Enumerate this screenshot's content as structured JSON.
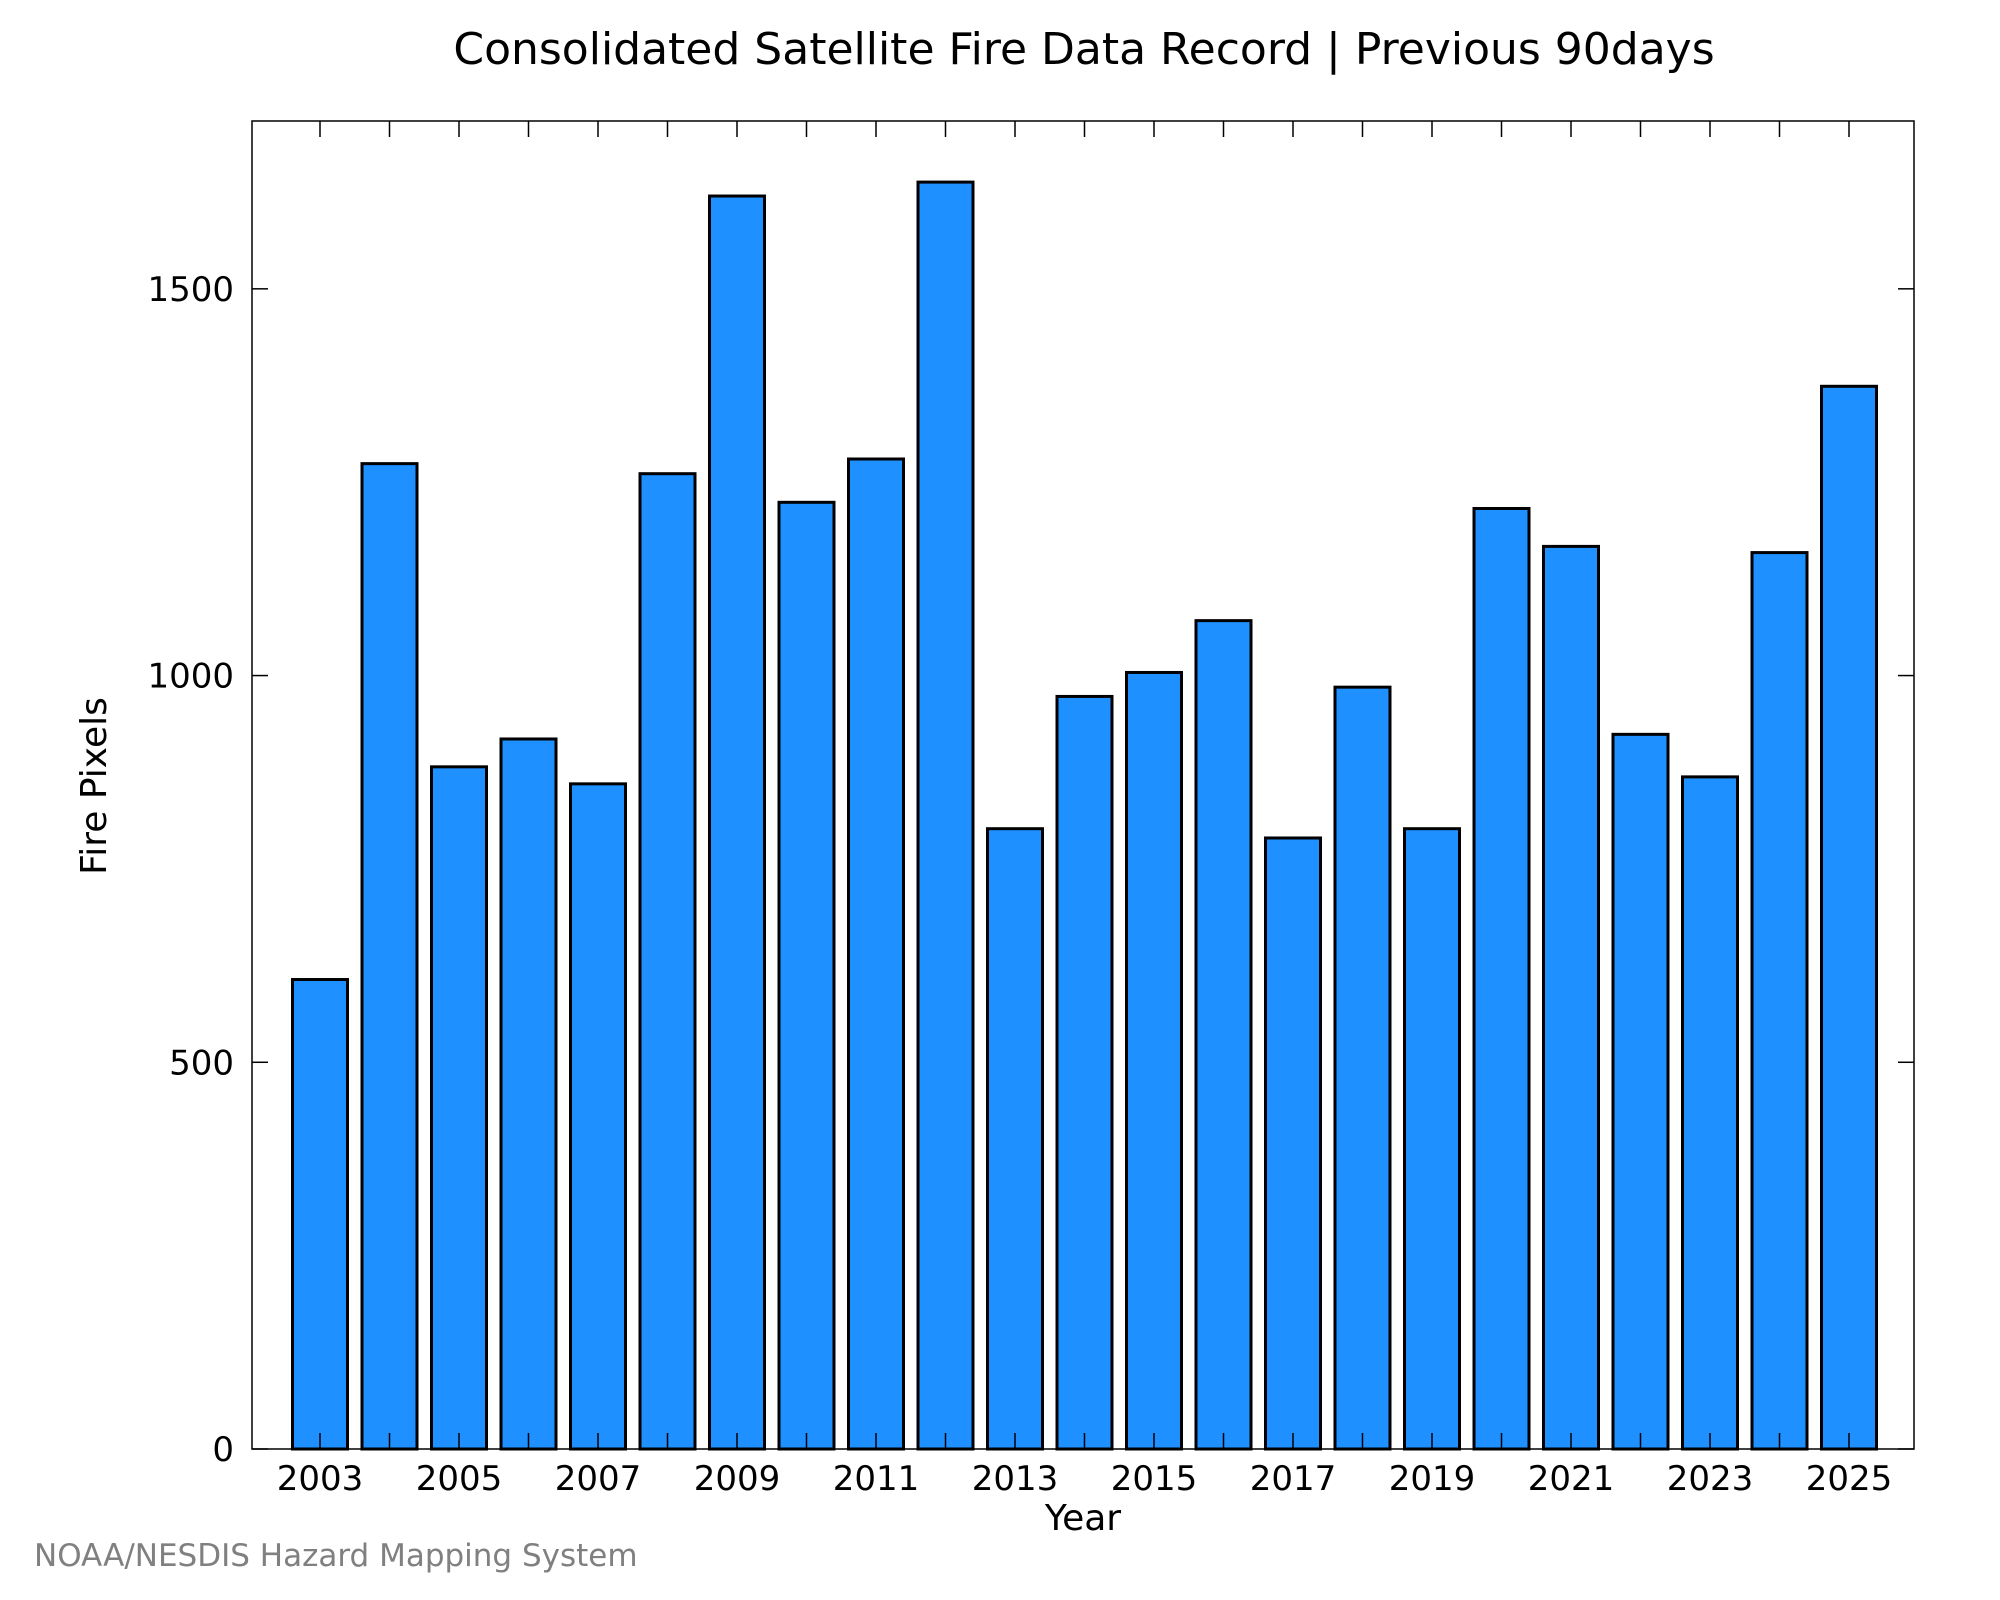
{
  "chart_data": {
    "type": "bar",
    "title": "Consolidated Satellite Fire Data Record | Previous 90days",
    "xlabel": "Year",
    "ylabel": "Fire Pixels",
    "categories": [
      "2003",
      "2004",
      "2005",
      "2006",
      "2007",
      "2008",
      "2009",
      "2010",
      "2011",
      "2012",
      "2013",
      "2014",
      "2015",
      "2016",
      "2017",
      "2018",
      "2019",
      "2020",
      "2021",
      "2022",
      "2023",
      "2024",
      "2025"
    ],
    "values": [
      607,
      1274,
      882,
      918,
      860,
      1261,
      1620,
      1224,
      1280,
      1638,
      802,
      973,
      1004,
      1071,
      790,
      985,
      802,
      1216,
      1167,
      924,
      869,
      1159,
      1374
    ],
    "x_tick_labels": [
      "2003",
      "2005",
      "2007",
      "2009",
      "2011",
      "2013",
      "2015",
      "2017",
      "2019",
      "2021",
      "2023",
      "2025"
    ],
    "y_tick_labels": [
      "0",
      "500",
      "1000",
      "1500"
    ],
    "y_ticks": [
      0,
      500,
      1000,
      1500
    ],
    "ylim": [
      0,
      1717
    ],
    "bar_color": "#1e90ff",
    "bar_edge_color": "#000000",
    "grid": false,
    "legend": "none"
  },
  "footer": {
    "credit": "NOAA/NESDIS Hazard Mapping System"
  }
}
